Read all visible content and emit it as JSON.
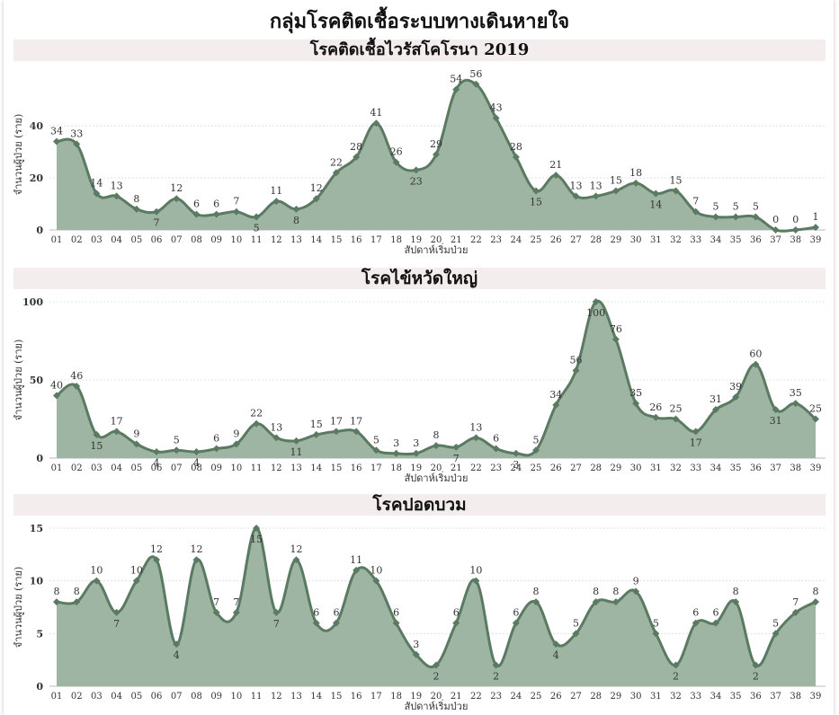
{
  "title": "กลุ่มโรคติดเชื้อระบบทางเดินหายใจ",
  "colors": {
    "fill": "#9fb5a3",
    "line": "#5a7a62",
    "marker": "#5a7a62",
    "band": "#f3eded",
    "grid": "#e6e0e0"
  },
  "chart_data": [
    {
      "type": "area",
      "title": "โรคติดเชื้อไวรัสโคโรนา 2019",
      "xlabel": "สัปดาห์เริ่มป่วย",
      "ylabel": "จำนวนผู้ป่วย (ราย)",
      "categories": [
        "01",
        "02",
        "03",
        "04",
        "05",
        "06",
        "07",
        "08",
        "09",
        "10",
        "11",
        "12",
        "13",
        "14",
        "15",
        "16",
        "17",
        "18",
        "19",
        "20",
        "21",
        "22",
        "23",
        "24",
        "25",
        "26",
        "27",
        "28",
        "29",
        "30",
        "31",
        "32",
        "33",
        "34",
        "35",
        "36",
        "37",
        "38",
        "39"
      ],
      "values": [
        34,
        33,
        14,
        13,
        8,
        7,
        12,
        6,
        6,
        7,
        5,
        11,
        8,
        12,
        22,
        28,
        41,
        26,
        23,
        29,
        54,
        56,
        43,
        28,
        15,
        21,
        13,
        13,
        15,
        18,
        14,
        15,
        7,
        5,
        5,
        5,
        0,
        0,
        1
      ],
      "ylim": [
        0,
        58
      ],
      "yticks": [
        0,
        20,
        40
      ],
      "grid": true
    },
    {
      "type": "area",
      "title": "โรคไข้หวัดใหญ่",
      "xlabel": "สัปดาห์เริ่มป่วย",
      "ylabel": "จำนวนผู้ป่วย (ราย)",
      "categories": [
        "01",
        "02",
        "03",
        "04",
        "05",
        "06",
        "07",
        "08",
        "09",
        "10",
        "11",
        "12",
        "13",
        "14",
        "15",
        "16",
        "17",
        "18",
        "19",
        "20",
        "21",
        "22",
        "23",
        "24",
        "25",
        "26",
        "27",
        "28",
        "29",
        "30",
        "31",
        "32",
        "33",
        "34",
        "35",
        "36",
        "37",
        "38",
        "39"
      ],
      "values": [
        40,
        46,
        15,
        17,
        9,
        4,
        5,
        4,
        6,
        9,
        22,
        13,
        11,
        15,
        17,
        17,
        5,
        3,
        3,
        8,
        7,
        13,
        6,
        3,
        5,
        34,
        56,
        100,
        76,
        35,
        26,
        25,
        17,
        31,
        39,
        60,
        31,
        35,
        25
      ],
      "ylim": [
        0,
        100
      ],
      "yticks": [
        0,
        50,
        100
      ],
      "grid": true
    },
    {
      "type": "area",
      "title": "โรคปอดบวม",
      "xlabel": "สัปดาห์เริ่มป่วย",
      "ylabel": "จำนวนผู้ป่วย (ราย)",
      "categories": [
        "01",
        "02",
        "03",
        "04",
        "05",
        "06",
        "07",
        "08",
        "09",
        "10",
        "11",
        "12",
        "13",
        "14",
        "15",
        "16",
        "17",
        "18",
        "19",
        "20",
        "21",
        "22",
        "23",
        "24",
        "25",
        "26",
        "27",
        "28",
        "29",
        "30",
        "31",
        "32",
        "33",
        "34",
        "35",
        "36",
        "37",
        "38",
        "39"
      ],
      "values": [
        8,
        8,
        10,
        7,
        10,
        12,
        4,
        12,
        7,
        7,
        15,
        7,
        12,
        6,
        6,
        11,
        10,
        6,
        3,
        2,
        6,
        10,
        2,
        6,
        8,
        4,
        5,
        8,
        8,
        9,
        5,
        2,
        6,
        6,
        8,
        2,
        5,
        7,
        8
      ],
      "ylim": [
        0,
        15
      ],
      "yticks": [
        0,
        5,
        10,
        15
      ],
      "grid": true
    }
  ]
}
